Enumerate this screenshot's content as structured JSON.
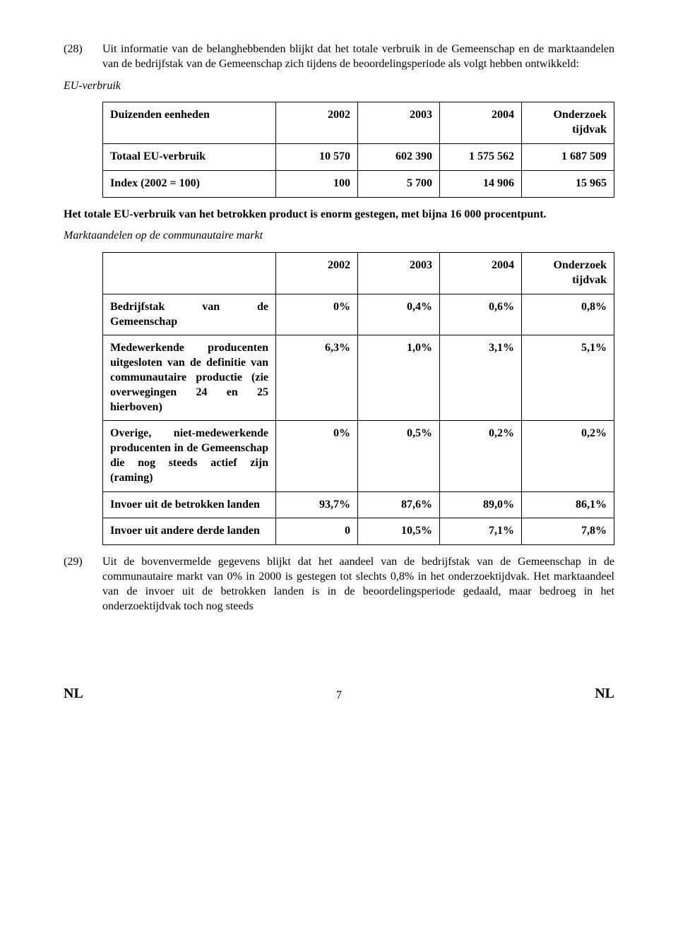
{
  "para28": {
    "num": "(28)",
    "text": "Uit informatie van de belanghebbenden blijkt dat het totale verbruik in de Gemeenschap en de marktaandelen van de bedrijfstak van de Gemeenschap zich tijdens de beoordelingsperiode als volgt hebben ontwikkeld:"
  },
  "section1_heading": "EU-verbruik",
  "table1": {
    "head": [
      "Duizenden eenheden",
      "2002",
      "2003",
      "2004",
      "Onderzoek tijdvak"
    ],
    "rows": [
      [
        "Totaal EU-verbruik",
        "10 570",
        "602 390",
        "1 575 562",
        "1 687 509"
      ],
      [
        "Index (2002 = 100)",
        "100",
        "5 700",
        "14 906",
        "15 965"
      ]
    ]
  },
  "mid_text": "Het totale EU-verbruik van het betrokken product is enorm gestegen, met bijna 16 000 procentpunt.",
  "section2_heading": "Marktaandelen op de communautaire markt",
  "table2": {
    "head": [
      "",
      "2002",
      "2003",
      "2004",
      "Onderzoek tijdvak"
    ],
    "rows": [
      [
        "Bedrijfstak van de Gemeenschap",
        "0%",
        "0,4%",
        "0,6%",
        "0,8%"
      ],
      [
        "Medewerkende producenten uitgesloten van de definitie van communautaire productie (zie overwegingen 24 en 25 hierboven)",
        "6,3%",
        "1,0%",
        "3,1%",
        "5,1%"
      ],
      [
        "Overige, niet-medewerkende producenten in de Gemeenschap die nog steeds actief zijn (raming)",
        "0%",
        "0,5%",
        "0,2%",
        "0,2%"
      ],
      [
        "Invoer uit de betrokken landen",
        "93,7%",
        "87,6%",
        "89,0%",
        "86,1%"
      ],
      [
        "Invoer uit andere derde landen",
        "0",
        "10,5%",
        "7,1%",
        "7,8%"
      ]
    ]
  },
  "para29": {
    "num": "(29)",
    "text": "Uit de bovenvermelde gegevens blijkt dat het aandeel van de bedrijfstak van de Gemeenschap in de communautaire markt van 0% in 2000 is gestegen tot slechts 0,8% in het onderzoektijdvak. Het marktaandeel van de invoer uit de betrokken landen is in de beoordelingsperiode gedaald, maar bedroeg in het onderzoektijdvak toch nog steeds"
  },
  "footer": {
    "left": "NL",
    "page": "7",
    "right": "NL"
  }
}
